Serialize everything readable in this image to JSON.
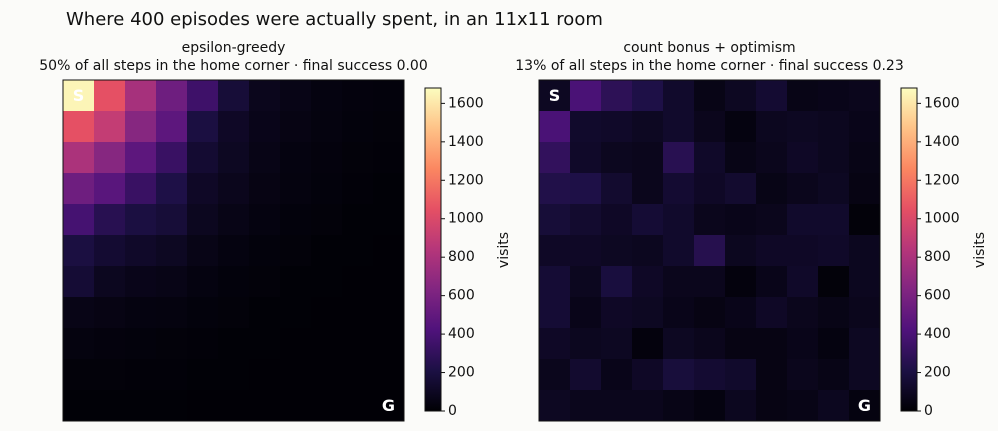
{
  "title": "Where 400 episodes were actually spent, in an 11x11 room",
  "chart_data": [
    {
      "type": "heatmap",
      "title": "epsilon-greedy",
      "subtitle": "50% of all steps in the home corner · final success 0.00",
      "colorbar_label": "visits",
      "colormap": "magma",
      "start_label": "S",
      "goal_label": "G",
      "zlim": [
        0,
        1680
      ],
      "zticks": [
        0,
        200,
        400,
        600,
        800,
        1000,
        1200,
        1400,
        1600
      ],
      "z": [
        [
          1650,
          1050,
          780,
          550,
          350,
          170,
          80,
          60,
          40,
          30,
          25
        ],
        [
          1050,
          900,
          650,
          480,
          200,
          110,
          70,
          50,
          35,
          25,
          20
        ],
        [
          800,
          650,
          480,
          330,
          150,
          100,
          60,
          40,
          30,
          20,
          15
        ],
        [
          550,
          460,
          330,
          220,
          110,
          80,
          50,
          35,
          25,
          15,
          10
        ],
        [
          380,
          260,
          200,
          170,
          90,
          60,
          40,
          25,
          20,
          10,
          10
        ],
        [
          200,
          150,
          120,
          100,
          60,
          40,
          25,
          20,
          10,
          10,
          5
        ],
        [
          160,
          90,
          70,
          60,
          40,
          25,
          20,
          10,
          10,
          5,
          5
        ],
        [
          60,
          50,
          40,
          35,
          25,
          20,
          10,
          10,
          5,
          5,
          5
        ],
        [
          35,
          30,
          25,
          20,
          15,
          10,
          10,
          5,
          5,
          5,
          5
        ],
        [
          20,
          20,
          15,
          15,
          10,
          10,
          5,
          5,
          5,
          5,
          5
        ],
        [
          10,
          10,
          10,
          10,
          5,
          5,
          5,
          5,
          5,
          5,
          5
        ]
      ]
    },
    {
      "type": "heatmap",
      "title": "count bonus + optimism",
      "subtitle": "13% of all steps in the home corner · final success 0.23",
      "colorbar_label": "visits",
      "colormap": "magma",
      "start_label": "S",
      "goal_label": "G",
      "zlim": [
        0,
        1680
      ],
      "zticks": [
        0,
        200,
        400,
        600,
        800,
        1000,
        1200,
        1400,
        1600
      ],
      "z": [
        [
          100,
          400,
          280,
          220,
          130,
          60,
          100,
          150,
          60,
          70,
          80
        ],
        [
          400,
          130,
          120,
          100,
          130,
          80,
          40,
          90,
          100,
          90,
          70
        ],
        [
          300,
          120,
          90,
          80,
          260,
          120,
          60,
          80,
          110,
          90,
          60
        ],
        [
          230,
          220,
          140,
          80,
          150,
          110,
          140,
          60,
          80,
          100,
          50
        ],
        [
          170,
          140,
          110,
          160,
          130,
          80,
          70,
          80,
          130,
          130,
          20
        ],
        [
          110,
          110,
          100,
          90,
          130,
          250,
          90,
          110,
          110,
          120,
          90
        ],
        [
          160,
          90,
          190,
          110,
          80,
          80,
          30,
          70,
          120,
          20,
          90
        ],
        [
          160,
          70,
          110,
          100,
          70,
          50,
          70,
          110,
          80,
          60,
          80
        ],
        [
          110,
          90,
          100,
          30,
          100,
          80,
          50,
          50,
          70,
          40,
          100
        ],
        [
          80,
          140,
          70,
          110,
          180,
          150,
          130,
          50,
          80,
          60,
          100
        ],
        [
          100,
          80,
          80,
          80,
          60,
          40,
          90,
          50,
          60,
          90,
          40
        ]
      ]
    }
  ]
}
